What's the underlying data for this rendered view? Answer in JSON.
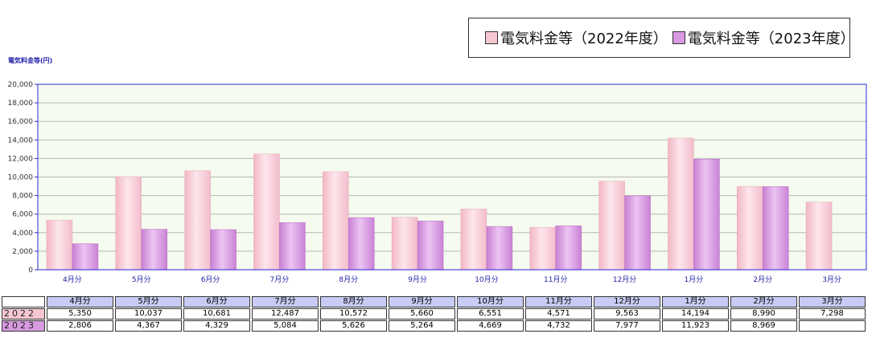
{
  "chart_data": {
    "type": "bar",
    "title": "",
    "ylabel": "電気料金等(円)",
    "xlabel": "",
    "ylim": [
      0,
      20000
    ],
    "yticks": [
      "0",
      "2,000",
      "4,000",
      "6,000",
      "8,000",
      "10,000",
      "12,000",
      "14,000",
      "16,000",
      "18,000",
      "20,000"
    ],
    "categories": [
      "4月分",
      "5月分",
      "6月分",
      "7月分",
      "8月分",
      "9月分",
      "10月分",
      "11月分",
      "12月分",
      "1月分",
      "2月分",
      "3月分"
    ],
    "series": [
      {
        "name": "電気料金等（2022年度）",
        "color": "#f7c7d1",
        "values": [
          5350,
          10037,
          10681,
          12487,
          10572,
          5660,
          6551,
          4571,
          9563,
          14194,
          8990,
          7298
        ]
      },
      {
        "name": "電気料金等（2023年度）",
        "color": "#d89ae0",
        "values": [
          2806,
          4367,
          4329,
          5084,
          5626,
          5264,
          4669,
          4732,
          7977,
          11923,
          8969,
          null
        ]
      }
    ],
    "grid": true,
    "legend_position": "top-right"
  },
  "table": {
    "headers": [
      "4月分",
      "5月分",
      "6月分",
      "7月分",
      "8月分",
      "9月分",
      "10月分",
      "11月分",
      "12月分",
      "1月分",
      "2月分",
      "3月分"
    ],
    "rows": [
      {
        "label": "2022",
        "color": "#f7c7d1",
        "cells": [
          "5,350",
          "10,037",
          "10,681",
          "12,487",
          "10,572",
          "5,660",
          "6,551",
          "4,571",
          "9,563",
          "14,194",
          "8,990",
          "7,298"
        ]
      },
      {
        "label": "2023",
        "color": "#d89ae0",
        "cells": [
          "2,806",
          "4,367",
          "4,329",
          "5,084",
          "5,626",
          "5,264",
          "4,669",
          "4,732",
          "7,977",
          "11,923",
          "8,969",
          ""
        ]
      }
    ]
  },
  "colors": {
    "plot_bg": "#f5fbee",
    "axis": "#2b2bd8",
    "grid": "#b8b8b8",
    "tick_text": "#1f1fa8"
  }
}
